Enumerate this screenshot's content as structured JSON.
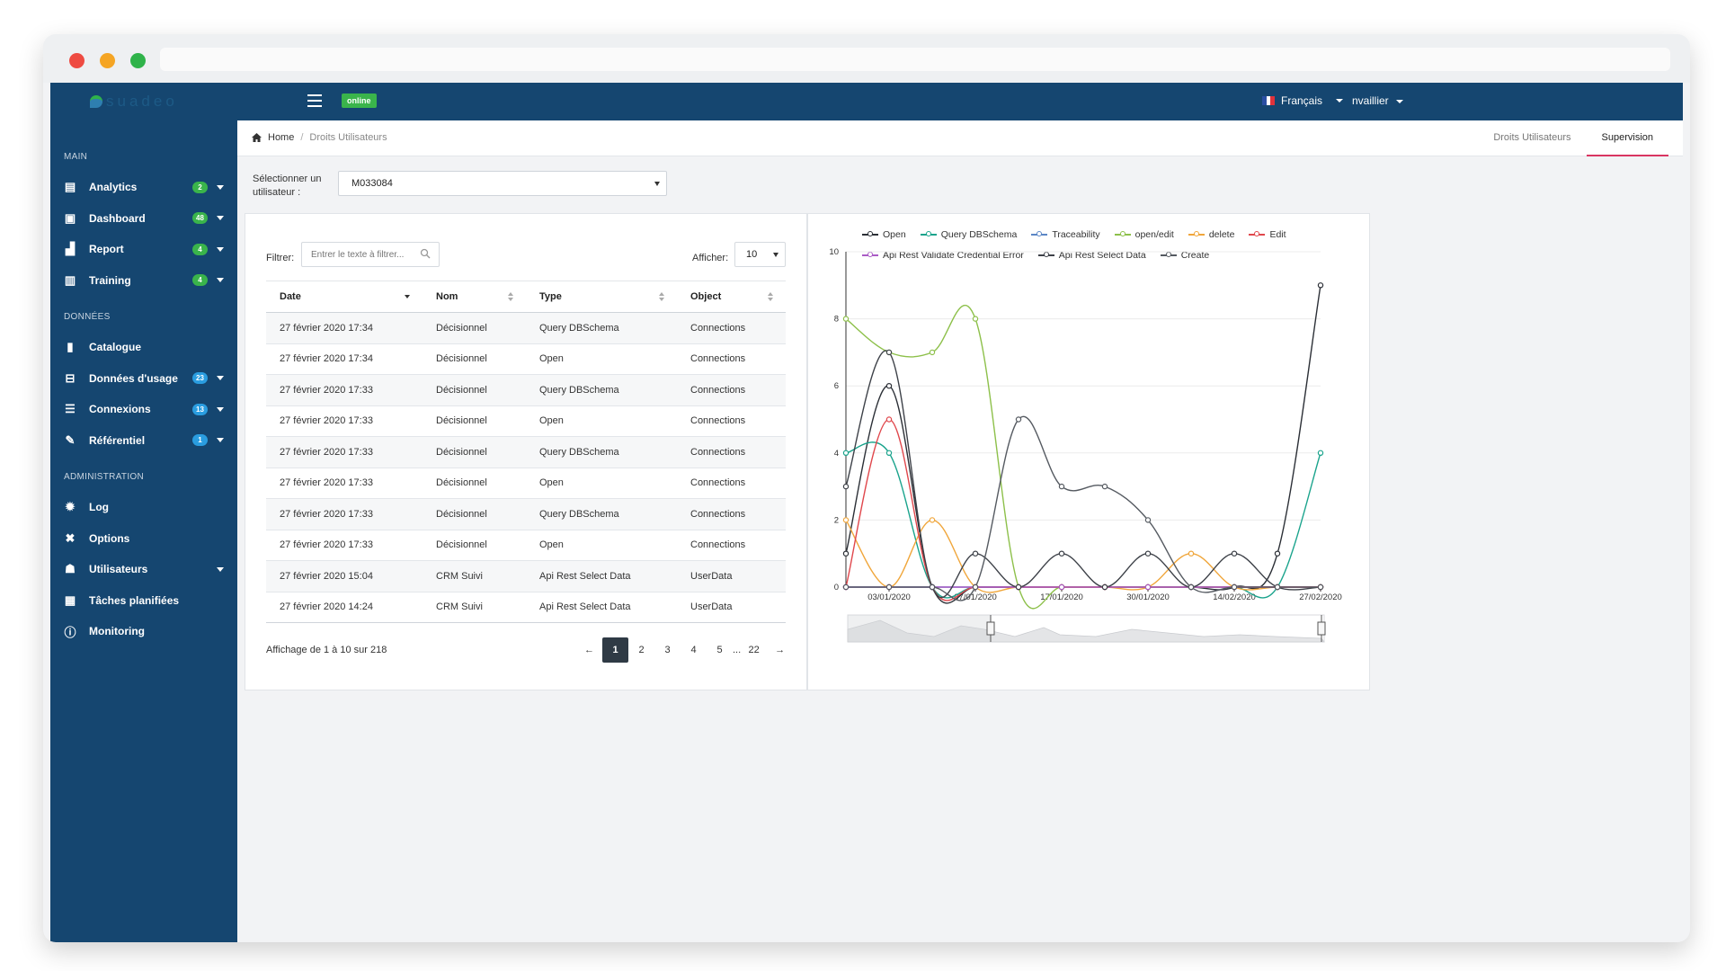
{
  "topbar": {
    "brand": "suadeo",
    "status": "online",
    "language": "Français",
    "user": "nvaillier"
  },
  "sidebar": {
    "sections": [
      {
        "title": "MAIN",
        "items": [
          {
            "label": "Analytics",
            "icon": "document-icon",
            "badge": "2",
            "badge_color": "#3ab44b",
            "dropdown": true
          },
          {
            "label": "Dashboard",
            "icon": "dashboard-icon",
            "badge": "48",
            "badge_color": "#3ab44b",
            "dropdown": true
          },
          {
            "label": "Report",
            "icon": "chart-icon",
            "badge": "4",
            "badge_color": "#3ab44b",
            "dropdown": true
          },
          {
            "label": "Training",
            "icon": "training-icon",
            "badge": "4",
            "badge_color": "#3ab44b",
            "dropdown": true
          }
        ]
      },
      {
        "title": "DONNÉES",
        "items": [
          {
            "label": "Catalogue",
            "icon": "book-icon"
          },
          {
            "label": "Données d'usage",
            "icon": "usage-icon",
            "badge": "23",
            "badge_color": "#2a9de0",
            "dropdown": true
          },
          {
            "label": "Connexions",
            "icon": "connections-icon",
            "badge": "13",
            "badge_color": "#2a9de0",
            "dropdown": true
          },
          {
            "label": "Référentiel",
            "icon": "referential-icon",
            "badge": "1",
            "badge_color": "#2a9de0",
            "dropdown": true
          }
        ]
      },
      {
        "title": "ADMINISTRATION",
        "items": [
          {
            "label": "Log",
            "icon": "bug-icon"
          },
          {
            "label": "Options",
            "icon": "tools-icon"
          },
          {
            "label": "Utilisateurs",
            "icon": "users-icon",
            "dropdown": true
          },
          {
            "label": "Tâches planifiées",
            "icon": "calendar-icon"
          },
          {
            "label": "Monitoring",
            "icon": "info-icon"
          }
        ]
      }
    ]
  },
  "breadcrumb": {
    "home": "Home",
    "current": "Droits Utilisateurs"
  },
  "tabs": [
    {
      "label": "Droits Utilisateurs",
      "active": false
    },
    {
      "label": "Supervision",
      "active": true
    }
  ],
  "user_select": {
    "label": "Sélectionner un utilisateur :",
    "value": "M033084"
  },
  "table_panel": {
    "filter_label": "Filtrer:",
    "filter_placeholder": "Entrer le texte à filtrer...",
    "show_label": "Afficher:",
    "show_value": "10",
    "columns": [
      "Date",
      "Nom",
      "Type",
      "Object"
    ],
    "rows": [
      [
        "27 février 2020 17:34",
        "Décisionnel",
        "Query DBSchema",
        "Connections"
      ],
      [
        "27 février 2020 17:34",
        "Décisionnel",
        "Open",
        "Connections"
      ],
      [
        "27 février 2020 17:33",
        "Décisionnel",
        "Query DBSchema",
        "Connections"
      ],
      [
        "27 février 2020 17:33",
        "Décisionnel",
        "Open",
        "Connections"
      ],
      [
        "27 février 2020 17:33",
        "Décisionnel",
        "Query DBSchema",
        "Connections"
      ],
      [
        "27 février 2020 17:33",
        "Décisionnel",
        "Open",
        "Connections"
      ],
      [
        "27 février 2020 17:33",
        "Décisionnel",
        "Query DBSchema",
        "Connections"
      ],
      [
        "27 février 2020 17:33",
        "Décisionnel",
        "Open",
        "Connections"
      ],
      [
        "27 février 2020 15:04",
        "CRM Suivi",
        "Api Rest Select Data",
        "UserData"
      ],
      [
        "27 février 2020 14:24",
        "CRM Suivi",
        "Api Rest Select Data",
        "UserData"
      ]
    ],
    "info": "Affichage de 1 à 10 sur 218",
    "pagination": {
      "prev": "←",
      "pages": [
        "1",
        "2",
        "3",
        "4",
        "5"
      ],
      "ellipsis": "...",
      "last": "22",
      "next": "→",
      "current": "1"
    }
  },
  "chart_data": {
    "type": "line",
    "ylim": [
      0,
      10
    ],
    "yticks": [
      "0",
      "2",
      "4",
      "6",
      "8",
      "10"
    ],
    "x": [
      "03/01/2020",
      "07/01/2020",
      "17/01/2020",
      "30/01/2020",
      "14/02/2020",
      "27/02/2020"
    ],
    "series": [
      {
        "name": "Open",
        "color": "#2b2f36",
        "points": [
          [
            -0.5,
            1
          ],
          [
            0,
            6
          ],
          [
            0.5,
            0
          ],
          [
            1,
            0
          ],
          [
            1.5,
            0
          ],
          [
            2,
            0
          ],
          [
            2.5,
            0
          ],
          [
            3,
            0
          ],
          [
            3.5,
            0
          ],
          [
            4,
            0
          ],
          [
            4.5,
            1
          ],
          [
            5,
            9
          ]
        ]
      },
      {
        "name": "Query DBSchema",
        "color": "#1aa38c",
        "points": [
          [
            -0.5,
            4
          ],
          [
            0,
            4
          ],
          [
            0.5,
            0
          ],
          [
            1,
            0
          ],
          [
            1.5,
            0
          ],
          [
            2,
            0
          ],
          [
            2.5,
            0
          ],
          [
            3,
            0
          ],
          [
            3.5,
            0
          ],
          [
            4,
            0
          ],
          [
            4.5,
            0
          ],
          [
            5,
            4
          ]
        ]
      },
      {
        "name": "Traceability",
        "color": "#5b86c5",
        "points": [
          [
            -0.5,
            0
          ],
          [
            0,
            0
          ],
          [
            0.5,
            0
          ],
          [
            1,
            0
          ],
          [
            1.5,
            0
          ],
          [
            2,
            0
          ],
          [
            2.5,
            0
          ],
          [
            3,
            0
          ],
          [
            3.5,
            0
          ],
          [
            4,
            0
          ],
          [
            4.5,
            0
          ],
          [
            5,
            0
          ]
        ]
      },
      {
        "name": "open/edit",
        "color": "#8dc04a",
        "points": [
          [
            -0.5,
            8
          ],
          [
            0,
            7
          ],
          [
            0.5,
            7
          ],
          [
            1,
            8
          ],
          [
            1.5,
            0
          ],
          [
            2,
            0
          ],
          [
            2.5,
            0
          ],
          [
            3,
            0
          ],
          [
            3.5,
            0
          ],
          [
            4,
            0
          ],
          [
            4.5,
            0
          ],
          [
            5,
            0
          ]
        ]
      },
      {
        "name": "delete",
        "color": "#f0a63b",
        "points": [
          [
            -0.5,
            2
          ],
          [
            0,
            0
          ],
          [
            0.5,
            2
          ],
          [
            1,
            0
          ],
          [
            1.5,
            0
          ],
          [
            2,
            0
          ],
          [
            2.5,
            0
          ],
          [
            3,
            0
          ],
          [
            3.5,
            1
          ],
          [
            4,
            0
          ],
          [
            4.5,
            0
          ],
          [
            5,
            0
          ]
        ]
      },
      {
        "name": "Edit",
        "color": "#e0474c",
        "points": [
          [
            -0.5,
            0
          ],
          [
            0,
            5
          ],
          [
            0.5,
            0
          ],
          [
            1,
            0
          ],
          [
            1.5,
            0
          ],
          [
            2,
            0
          ],
          [
            2.5,
            0
          ],
          [
            3,
            0
          ],
          [
            3.5,
            0
          ],
          [
            4,
            0
          ],
          [
            4.5,
            0
          ],
          [
            5,
            0
          ]
        ]
      },
      {
        "name": "Api Rest Validate Credential Error",
        "color": "#a95bc5",
        "points": [
          [
            -0.5,
            0
          ],
          [
            0,
            0
          ],
          [
            0.5,
            0
          ],
          [
            1,
            0
          ],
          [
            1.5,
            0
          ],
          [
            2,
            0
          ],
          [
            2.5,
            0
          ],
          [
            3,
            0
          ],
          [
            3.5,
            0
          ],
          [
            4,
            0
          ],
          [
            4.5,
            0
          ],
          [
            5,
            0
          ]
        ]
      },
      {
        "name": "Api Rest Select Data",
        "color": "#3d4148",
        "points": [
          [
            -0.5,
            3
          ],
          [
            0,
            7
          ],
          [
            0.5,
            0
          ],
          [
            1,
            1
          ],
          [
            1.5,
            0
          ],
          [
            2,
            1
          ],
          [
            2.5,
            0
          ],
          [
            3,
            1
          ],
          [
            3.5,
            0
          ],
          [
            4,
            1
          ],
          [
            4.5,
            0
          ],
          [
            5,
            0
          ]
        ]
      },
      {
        "name": "Create",
        "color": "#555a61",
        "points": [
          [
            -0.5,
            0
          ],
          [
            0,
            0
          ],
          [
            0.5,
            0
          ],
          [
            1,
            0
          ],
          [
            1.5,
            5
          ],
          [
            2,
            3
          ],
          [
            2.5,
            3
          ],
          [
            3,
            2
          ],
          [
            3.5,
            0
          ],
          [
            4,
            0
          ],
          [
            4.5,
            0
          ],
          [
            5,
            0
          ]
        ]
      }
    ]
  }
}
